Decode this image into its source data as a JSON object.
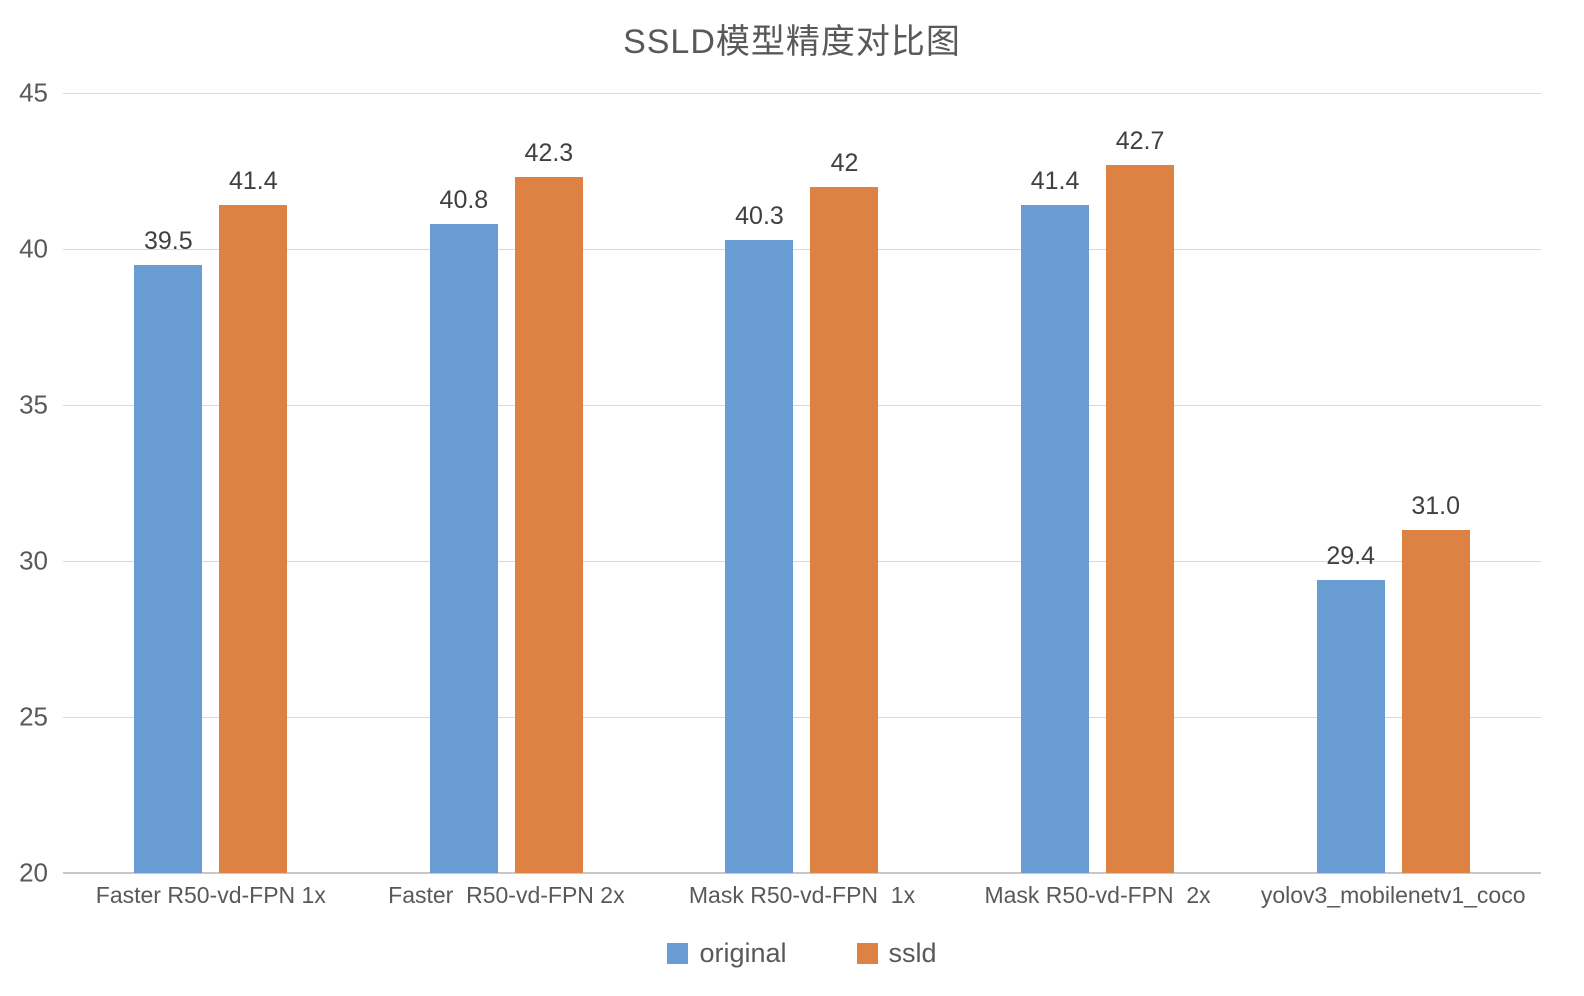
{
  "chart_data": {
    "type": "bar",
    "title": "SSLD模型精度对比图",
    "categories": [
      "Faster R50-vd-FPN 1x",
      "Faster  R50-vd-FPN 2x",
      "Mask R50-vd-FPN  1x",
      "Mask R50-vd-FPN  2x",
      "yolov3_mobilenetv1_coco"
    ],
    "series": [
      {
        "name": "original",
        "color": "#699CD2",
        "values": [
          39.5,
          40.8,
          40.3,
          41.4,
          29.4
        ],
        "labels": [
          "39.5",
          "40.8",
          "40.3",
          "41.4",
          "29.4"
        ]
      },
      {
        "name": "ssld",
        "color": "#DE8244",
        "values": [
          41.4,
          42.3,
          42,
          42.7,
          31.0
        ],
        "labels": [
          "41.4",
          "42.3",
          "42",
          "42.7",
          "31.0"
        ]
      }
    ],
    "xlabel": "",
    "ylabel": "",
    "ylim": [
      20,
      45
    ],
    "yticks": [
      45,
      40,
      35,
      30,
      25,
      20
    ],
    "grid": true,
    "legend_position": "bottom",
    "gridline_color": "#d9d9d9",
    "axis_line_color": "#c8c8c8",
    "label_color": "#404040",
    "tick_color": "#595959"
  }
}
